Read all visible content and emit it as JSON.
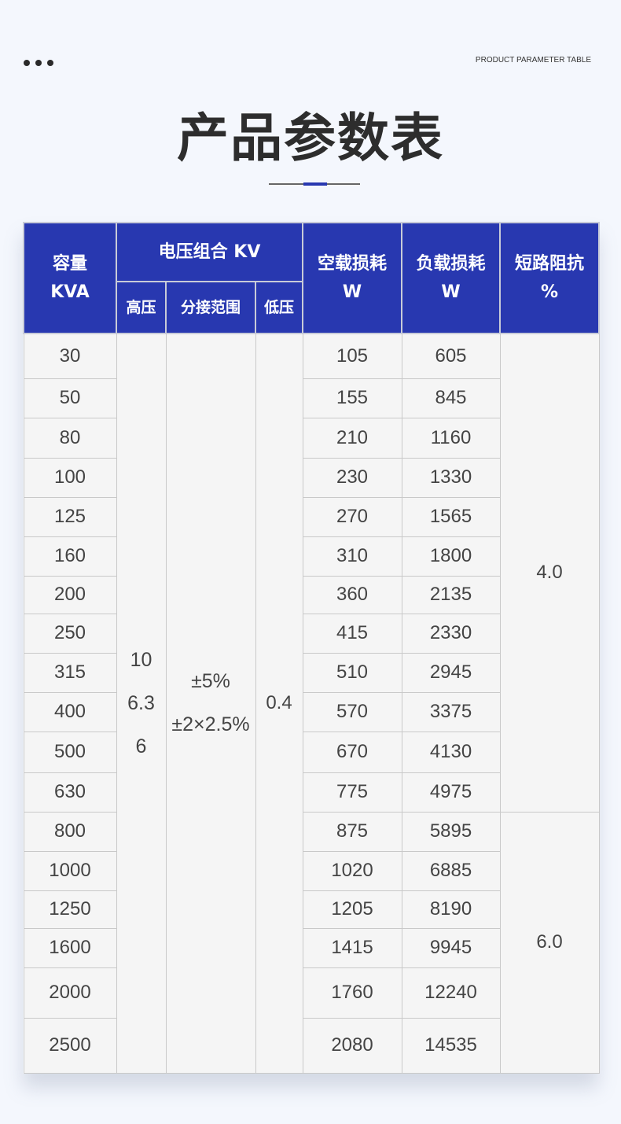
{
  "header": {
    "english_label": "PRODUCT PARAMETER TABLE",
    "title": "产品参数表"
  },
  "colors": {
    "header_bg": "#2838b0",
    "cell_bg": "#f5f5f5",
    "page_bg": "#f4f7fd"
  },
  "table": {
    "headers": {
      "capacity": "容量",
      "capacity_unit": "KVA",
      "voltage_group": "电压组合 KV",
      "hv": "高压",
      "tap_range": "分接范围",
      "lv": "低压",
      "no_load_loss": "空载损耗",
      "no_load_unit": "W",
      "load_loss": "负载损耗",
      "load_unit": "W",
      "impedance": "短路阻抗",
      "impedance_unit": "%"
    },
    "hv_values": [
      "10",
      "6.3",
      "6"
    ],
    "tap_values": [
      "±5%",
      "±2×2.5%"
    ],
    "lv_value": "0.4",
    "impedance_values": [
      "4.0",
      "6.0"
    ],
    "rows": [
      {
        "capacity": "30",
        "no_load": "105",
        "load": "605"
      },
      {
        "capacity": "50",
        "no_load": "155",
        "load": "845"
      },
      {
        "capacity": "80",
        "no_load": "210",
        "load": "1160"
      },
      {
        "capacity": "100",
        "no_load": "230",
        "load": "1330"
      },
      {
        "capacity": "125",
        "no_load": "270",
        "load": "1565"
      },
      {
        "capacity": "160",
        "no_load": "310",
        "load": "1800"
      },
      {
        "capacity": "200",
        "no_load": "360",
        "load": "2135"
      },
      {
        "capacity": "250",
        "no_load": "415",
        "load": "2330"
      },
      {
        "capacity": "315",
        "no_load": "510",
        "load": "2945"
      },
      {
        "capacity": "400",
        "no_load": "570",
        "load": "3375"
      },
      {
        "capacity": "500",
        "no_load": "670",
        "load": "4130"
      },
      {
        "capacity": "630",
        "no_load": "775",
        "load": "4975"
      },
      {
        "capacity": "800",
        "no_load": "875",
        "load": "5895"
      },
      {
        "capacity": "1000",
        "no_load": "1020",
        "load": "6885"
      },
      {
        "capacity": "1250",
        "no_load": "1205",
        "load": "8190"
      },
      {
        "capacity": "1600",
        "no_load": "1415",
        "load": "9945"
      },
      {
        "capacity": "2000",
        "no_load": "1760",
        "load": "12240"
      },
      {
        "capacity": "2500",
        "no_load": "2080",
        "load": "14535"
      }
    ]
  }
}
